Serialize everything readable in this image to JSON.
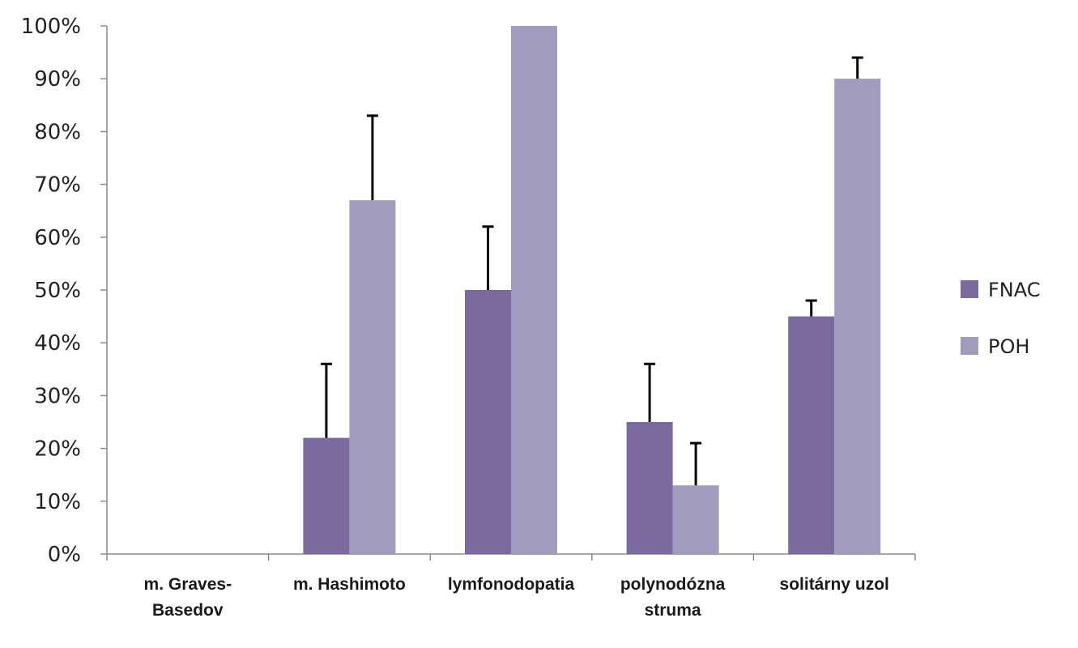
{
  "chart_data": {
    "type": "bar",
    "categories": [
      [
        "m. Graves-",
        "Basedov"
      ],
      [
        "m. Hashimoto"
      ],
      [
        "lymfonodopatia"
      ],
      [
        "polynodózna",
        "struma"
      ],
      [
        "solitárny uzol"
      ]
    ],
    "series": [
      {
        "name": "FNAC",
        "color": "#7a6a9e",
        "values": [
          0,
          22,
          50,
          25,
          45
        ],
        "error_upper": [
          null,
          36,
          62,
          36,
          48
        ]
      },
      {
        "name": "POH",
        "color": "#a39bbd",
        "values": [
          0,
          67,
          100,
          13,
          90
        ],
        "error_upper": [
          null,
          83,
          null,
          21,
          94
        ]
      }
    ],
    "ylim": [
      0,
      100
    ],
    "yticks": [
      "0%",
      "10%",
      "20%",
      "30%",
      "40%",
      "50%",
      "60%",
      "70%",
      "80%",
      "90%",
      "100%"
    ],
    "legend_position": "right",
    "grid": false
  }
}
